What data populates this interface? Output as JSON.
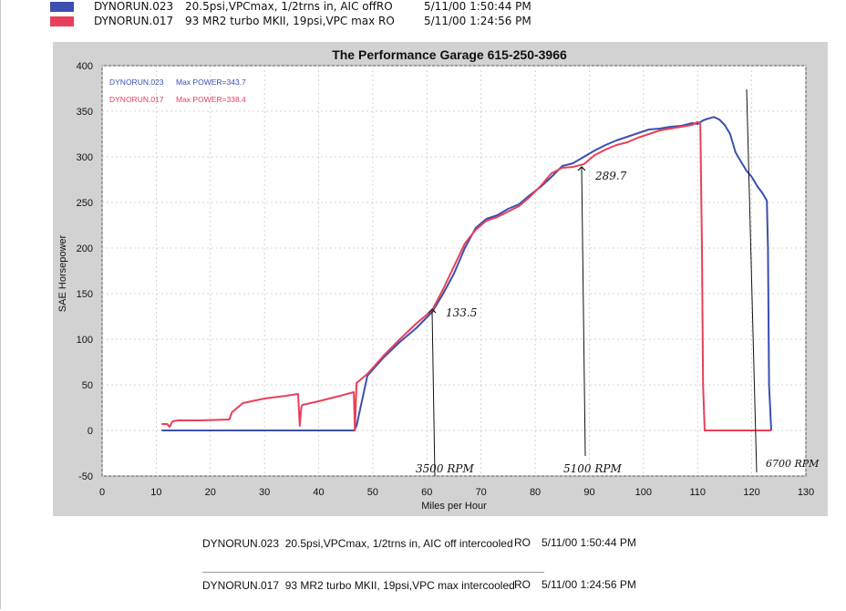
{
  "legend_top": [
    {
      "run": "DYNORUN.023",
      "desc": "20.5psi,VPCmax, 1/2trns in, AIC offRO",
      "date": "5/11/00 1:50:44 PM",
      "color": "#3b4fb0"
    },
    {
      "run": "DYNORUN.017",
      "desc": "93 MR2 turbo MKII, 19psi,VPC max RO",
      "date": "5/11/00 1:24:56 PM",
      "color": "#e8405a"
    }
  ],
  "chart_data": {
    "type": "line",
    "title": "The Performance Garage 615-250-3966",
    "xlabel": "Miles per Hour",
    "ylabel": "SAE Horsepower",
    "xlim": [
      0,
      130
    ],
    "ylim": [
      -50,
      400
    ],
    "xticks": [
      "0",
      "10",
      "20",
      "30",
      "40",
      "50",
      "60",
      "70",
      "80",
      "90",
      "100",
      "110",
      "120",
      "130"
    ],
    "yticks": [
      "-50",
      "0",
      "50",
      "100",
      "150",
      "200",
      "250",
      "300",
      "350",
      "400"
    ],
    "grid": true,
    "legend_position": "top-left",
    "series": [
      {
        "name": "DYNORUN.023",
        "label": "DYNORUN.023",
        "note": "Max POWER=343.7",
        "color": "#3b4fb0",
        "x": [
          11,
          14,
          18,
          24,
          27,
          33,
          36.3,
          36.8,
          37,
          42,
          46.3,
          46.6,
          47,
          49,
          52,
          55,
          58,
          61,
          63,
          65,
          67,
          69,
          71,
          73,
          75,
          77,
          79,
          81,
          83,
          85,
          87,
          89,
          91,
          93,
          95,
          97,
          99,
          101,
          103,
          105,
          107,
          109,
          110,
          111,
          112,
          113,
          114,
          115,
          116,
          117,
          118,
          119,
          120,
          121,
          122,
          122.8,
          123,
          123.2,
          123.6
        ],
        "y": [
          0,
          0,
          0,
          0,
          0,
          0,
          0,
          0,
          0,
          0,
          0,
          0,
          5,
          60,
          80,
          97,
          112,
          130,
          150,
          172,
          200,
          222,
          232,
          236,
          243,
          248,
          258,
          267,
          278,
          290,
          293,
          300,
          307,
          313,
          318,
          322,
          326,
          330,
          331,
          333,
          334,
          337,
          336,
          340,
          342,
          343.7,
          341,
          335,
          325,
          305,
          295,
          285,
          278,
          268,
          260,
          252,
          200,
          50,
          0
        ]
      },
      {
        "name": "DYNORUN.017",
        "label": "DYNORUN.017",
        "note": "Max POWER=338.4",
        "color": "#e8405a",
        "x": [
          11,
          12,
          12.5,
          13,
          14,
          18,
          23.5,
          24,
          26,
          30,
          34,
          36.2,
          36.5,
          36.8,
          37,
          40,
          44,
          46.5,
          46.7,
          47,
          49,
          52,
          55,
          58,
          61,
          63,
          65,
          67,
          69,
          71,
          73,
          75,
          77,
          79,
          81,
          83,
          85,
          87,
          89,
          91,
          93,
          95,
          97,
          99,
          101,
          103,
          105,
          107,
          109,
          110,
          110.5,
          110.8,
          111,
          111.3,
          112,
          120,
          123.6
        ],
        "y": [
          7,
          7,
          4,
          10,
          11,
          11,
          12,
          20,
          30,
          35,
          38,
          40,
          5,
          25,
          28,
          32,
          38,
          42,
          0,
          52,
          62,
          82,
          100,
          117,
          132,
          155,
          180,
          205,
          220,
          230,
          234,
          240,
          246,
          256,
          268,
          282,
          288,
          289,
          292,
          302,
          308,
          313,
          316,
          321,
          325,
          329,
          331,
          333,
          335,
          338.4,
          336,
          200,
          50,
          0,
          0,
          0,
          0
        ]
      }
    ]
  },
  "annotations": {
    "pt1": "133.5",
    "pt2": "289.7",
    "rpm1": "3500 RPM",
    "rpm2": "5100 RPM",
    "rpm3": "6700 RPM"
  },
  "footer": [
    {
      "run": "DYNORUN.023",
      "desc": "20.5psi,VPCmax, 1/2trns in, AIC off intercooled",
      "ro": "RO",
      "date": "5/11/00 1:50:44 PM"
    },
    {
      "run": "DYNORUN.017",
      "desc": "93 MR2 turbo MKII, 19psi,VPC max intercooled",
      "ro": "RO",
      "date": "5/11/00 1:24:56 PM"
    }
  ]
}
